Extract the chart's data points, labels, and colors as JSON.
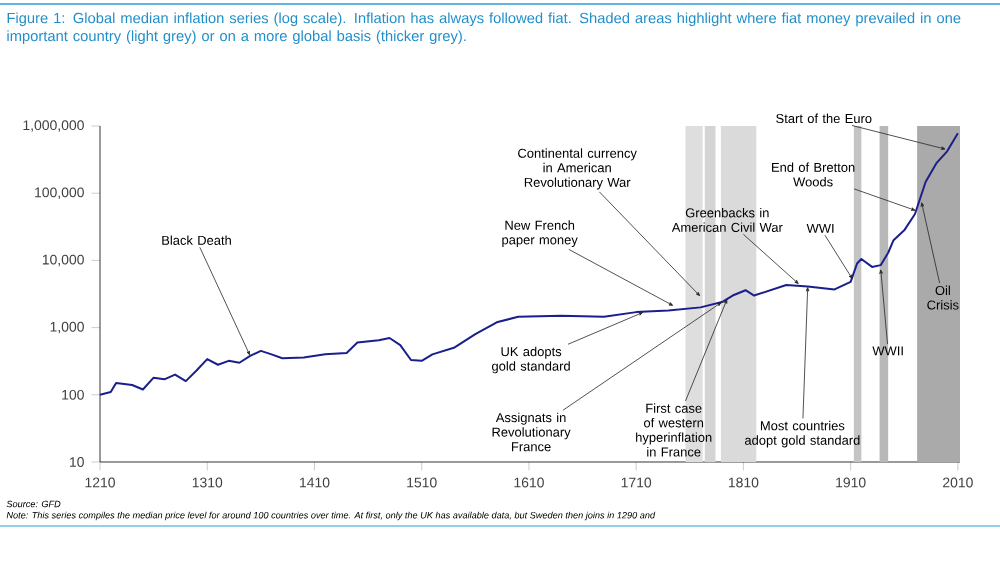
{
  "chart_data": {
    "type": "line",
    "title": "Figure 1: Global median inflation series (log scale). Inflation has always followed fiat. Shaded areas highlight where fiat money prevailed in one important country (light grey) or on a more global basis (thicker grey).",
    "x": [
      1210,
      1220,
      1225,
      1240,
      1250,
      1260,
      1270,
      1280,
      1290,
      1300,
      1310,
      1320,
      1330,
      1340,
      1350,
      1360,
      1370,
      1380,
      1400,
      1420,
      1440,
      1450,
      1470,
      1480,
      1490,
      1500,
      1510,
      1520,
      1540,
      1560,
      1580,
      1600,
      1640,
      1680,
      1710,
      1740,
      1770,
      1790,
      1800,
      1812,
      1820,
      1850,
      1870,
      1895,
      1910,
      1916,
      1920,
      1930,
      1938,
      1945,
      1950,
      1960,
      1970,
      1980,
      1990,
      2000,
      2010
    ],
    "series": [
      {
        "color": "#1a1f8c",
        "values": [
          100,
          110,
          150,
          140,
          120,
          180,
          170,
          200,
          160,
          230,
          340,
          280,
          320,
          300,
          380,
          450,
          400,
          350,
          360,
          400,
          420,
          600,
          650,
          700,
          550,
          330,
          320,
          400,
          500,
          800,
          1200,
          1450,
          1500,
          1450,
          1700,
          1800,
          2000,
          2400,
          3000,
          3600,
          3000,
          4300,
          4100,
          3700,
          4800,
          9000,
          10500,
          8000,
          8500,
          13000,
          20000,
          28000,
          49000,
          148000,
          280000,
          420000,
          780000
        ]
      }
    ],
    "log": "y",
    "xlim": [
      1210,
      2012
    ],
    "xticks": [
      1210,
      1310,
      1410,
      1510,
      1610,
      1710,
      1810,
      1910,
      2010
    ],
    "ylim": [
      10,
      1000000
    ],
    "yticks": [
      {
        "value": 10,
        "label": "10"
      },
      {
        "value": 100,
        "label": "100"
      },
      {
        "value": 1000,
        "label": "1,000"
      },
      {
        "value": 10000,
        "label": "10,000"
      },
      {
        "value": 100000,
        "label": "100,000"
      },
      {
        "value": 1000000,
        "label": "1,000,000"
      }
    ],
    "bands": [
      {
        "axis": "x",
        "from": 1756,
        "to": 1772,
        "color": "#dedede"
      },
      {
        "axis": "x",
        "from": 1774,
        "to": 1784,
        "color": "#d4d4d4"
      },
      {
        "axis": "x",
        "from": 1789,
        "to": 1822,
        "color": "#dadada"
      },
      {
        "axis": "x",
        "from": 1913,
        "to": 1920,
        "color": "#c4c4c4"
      },
      {
        "axis": "x",
        "from": 1937,
        "to": 1945,
        "color": "#b8b8b8"
      },
      {
        "axis": "x",
        "from": 1972,
        "to": 2012,
        "color": "#aaaaaa"
      }
    ],
    "annotations": [
      {
        "text": "Black Death",
        "x": 1350,
        "y": 380
      },
      {
        "text": "Continental currency in American Revolutionary War",
        "x": 1770,
        "y": 2900
      },
      {
        "text": "New French paper money",
        "x": 1745,
        "y": 2100
      },
      {
        "text": "Greenbacks in American Civil War",
        "x": 1862,
        "y": 4400
      },
      {
        "text": "WWI",
        "x": 1912,
        "y": 5200
      },
      {
        "text": "WWII",
        "x": 1938,
        "y": 7500
      },
      {
        "text": "Start of the Euro",
        "x": 1999,
        "y": 450000
      },
      {
        "text": "End of Bretton Woods",
        "x": 1971,
        "y": 55000
      },
      {
        "text": "Oil Crisis",
        "x": 1976,
        "y": 75000
      },
      {
        "text": "UK adopts gold standard",
        "x": 1717,
        "y": 1700
      },
      {
        "text": "Assignats in Revolutionary France",
        "x": 1790,
        "y": 2400
      },
      {
        "text": "First case of western hyperinflation in France",
        "x": 1795,
        "y": 2700
      },
      {
        "text": "Most countries adopt gold standard",
        "x": 1870,
        "y": 4100
      },
      "Source: GFD",
      "Note: This series compiles the median price level for around 100 countries over time. At first, only the UK has available data, but Sweden then joins in 1290 and"
    ]
  }
}
